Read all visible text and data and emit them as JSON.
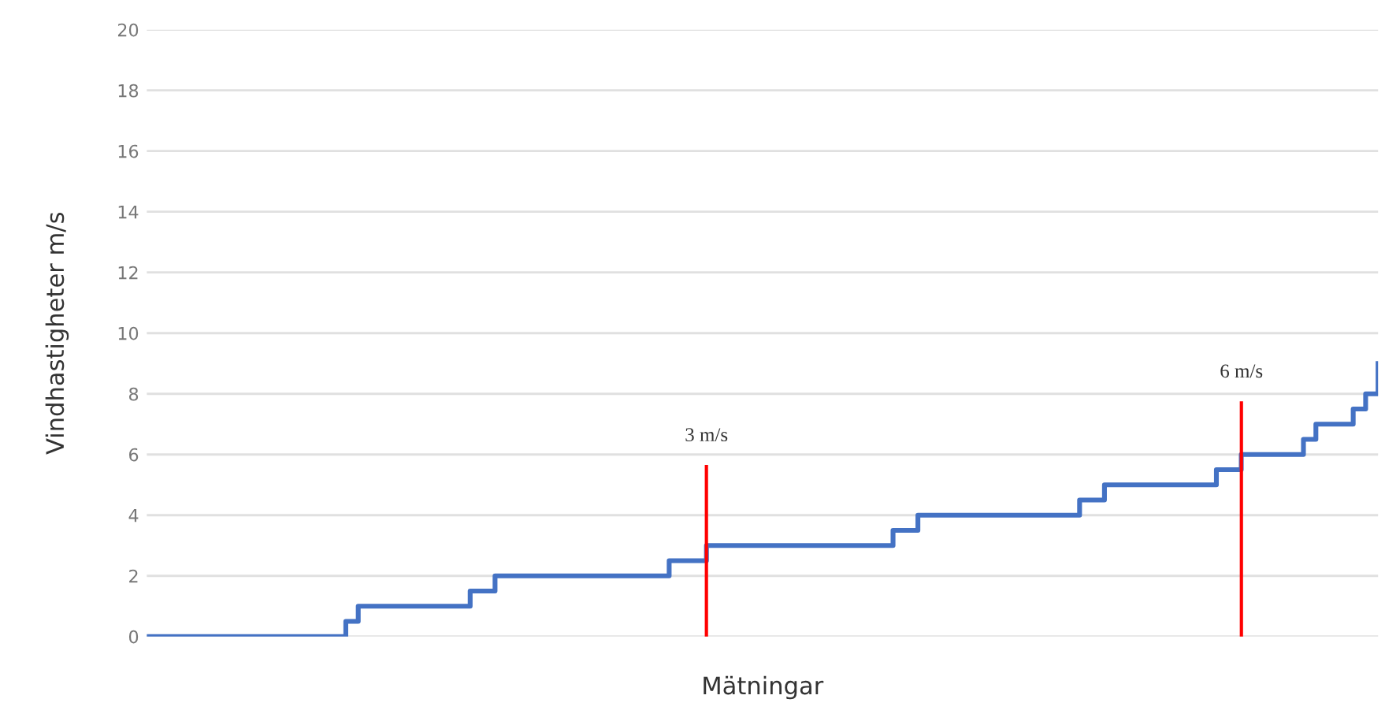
{
  "chart_data": {
    "type": "step",
    "xlabel": "Mätningar",
    "ylabel": "Vindhastigheter m/s",
    "categories": [
      null,
      null,
      null,
      null,
      null,
      null,
      null,
      null,
      null,
      null,
      null,
      null,
      null,
      null,
      null,
      null,
      null,
      null,
      null,
      null,
      null,
      null,
      null,
      null,
      null,
      null,
      null,
      null,
      null,
      null,
      null,
      null,
      null,
      null,
      null,
      null,
      null,
      null,
      null,
      null,
      null,
      null,
      null,
      null,
      null,
      null,
      null,
      null,
      null,
      null,
      null,
      null,
      null,
      null,
      null,
      null,
      null,
      null,
      null,
      null,
      null,
      null,
      null,
      null,
      null,
      null,
      null,
      null,
      null,
      null,
      null,
      null,
      null,
      null,
      null,
      null,
      null,
      null,
      null,
      null,
      null,
      null,
      null,
      null,
      null,
      null,
      null,
      null,
      null,
      null,
      null,
      null,
      null,
      null,
      null,
      null,
      null,
      null,
      null,
      null
    ],
    "series": [
      {
        "color": "#4472c4",
        "values": [
          0,
          0,
          0,
          0,
          0,
          0,
          0,
          0,
          0,
          0,
          0,
          0,
          0,
          0,
          0,
          0,
          0.5,
          1,
          1,
          1,
          1,
          1,
          1,
          1,
          1,
          1,
          1.5,
          1.5,
          2,
          2,
          2,
          2,
          2,
          2,
          2,
          2,
          2,
          2,
          2,
          2,
          2,
          2,
          2.5,
          2.5,
          2.5,
          3,
          3,
          3,
          3,
          3,
          3,
          3,
          3,
          3,
          3,
          3,
          3,
          3,
          3,
          3,
          3.5,
          3.5,
          4,
          4,
          4,
          4,
          4,
          4,
          4,
          4,
          4,
          4,
          4,
          4,
          4,
          4.5,
          4.5,
          5,
          5,
          5,
          5,
          5,
          5,
          5,
          5,
          5,
          5.5,
          5.5,
          6,
          6,
          6,
          6,
          6,
          6.5,
          7,
          7,
          7,
          7.5,
          8,
          9
        ]
      }
    ],
    "ylim": [
      0,
      20
    ],
    "yticks": [
      0,
      2,
      4,
      6,
      8,
      10,
      12,
      14,
      16,
      18,
      20
    ],
    "grid": "y",
    "tick_labels": "y",
    "annotations": [
      "3 m/s",
      "6 m/s"
    ]
  }
}
